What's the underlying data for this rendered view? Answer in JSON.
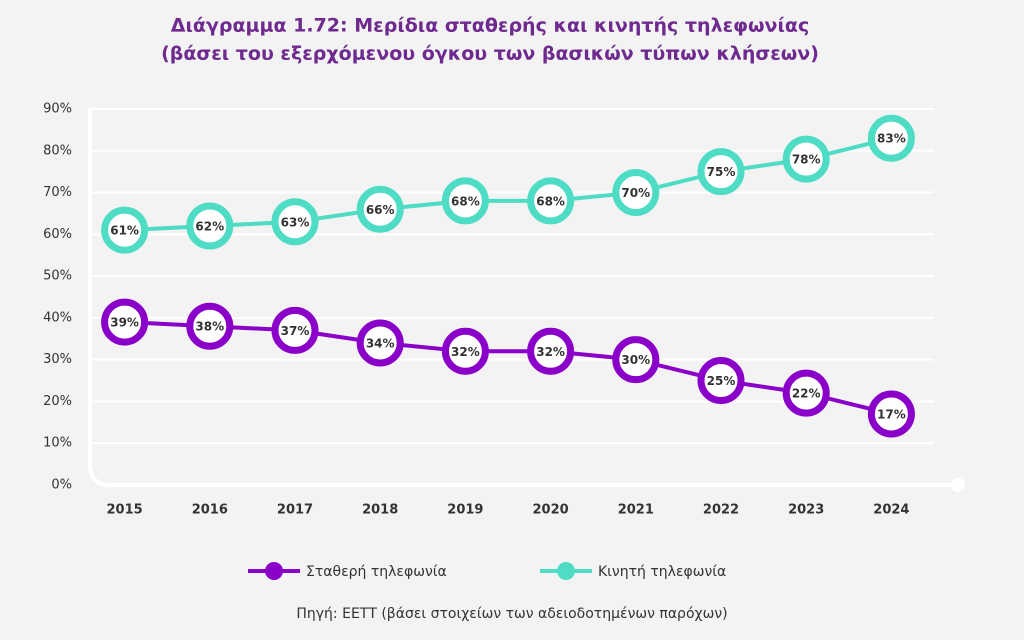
{
  "chart_data": {
    "type": "line",
    "title": "Διάγραμμα 1.72: Μερίδια σταθερής και κινητής τηλεφωνίας",
    "subtitle": "(βάσει του εξερχόμενου όγκου των βασικών τύπων κλήσεων)",
    "categories": [
      "2015",
      "2016",
      "2017",
      "2018",
      "2019",
      "2020",
      "2021",
      "2022",
      "2023",
      "2024"
    ],
    "series": [
      {
        "name": "Σταθερή τηλεφωνία",
        "color": "#8a00c8",
        "values": [
          39,
          38,
          37,
          34,
          32,
          32,
          30,
          25,
          22,
          17
        ],
        "value_labels": [
          "39%",
          "38%",
          "37%",
          "34%",
          "32%",
          "32%",
          "30%",
          "25%",
          "22%",
          "17%"
        ]
      },
      {
        "name": "Κινητή τηλεφωνία",
        "color": "#4fdcc4",
        "values": [
          61,
          62,
          63,
          66,
          68,
          68,
          70,
          75,
          78,
          83
        ],
        "value_labels": [
          "61%",
          "62%",
          "63%",
          "66%",
          "68%",
          "68%",
          "70%",
          "75%",
          "78%",
          "83%"
        ]
      }
    ],
    "ylim": [
      0,
      90
    ],
    "yticks": [
      {
        "value": 0,
        "label": "0%"
      },
      {
        "value": 10,
        "label": "10%"
      },
      {
        "value": 20,
        "label": "20%"
      },
      {
        "value": 30,
        "label": "30%"
      },
      {
        "value": 40,
        "label": "40%"
      },
      {
        "value": 50,
        "label": "50%"
      },
      {
        "value": 60,
        "label": "60%"
      },
      {
        "value": 70,
        "label": "70%"
      },
      {
        "value": 80,
        "label": "80%"
      },
      {
        "value": 90,
        "label": "90%"
      }
    ],
    "grid": true,
    "source": "Πηγή: ΕΕΤΤ (βάσει στοιχείων των αδειοδοτημένων παρόχων)"
  }
}
